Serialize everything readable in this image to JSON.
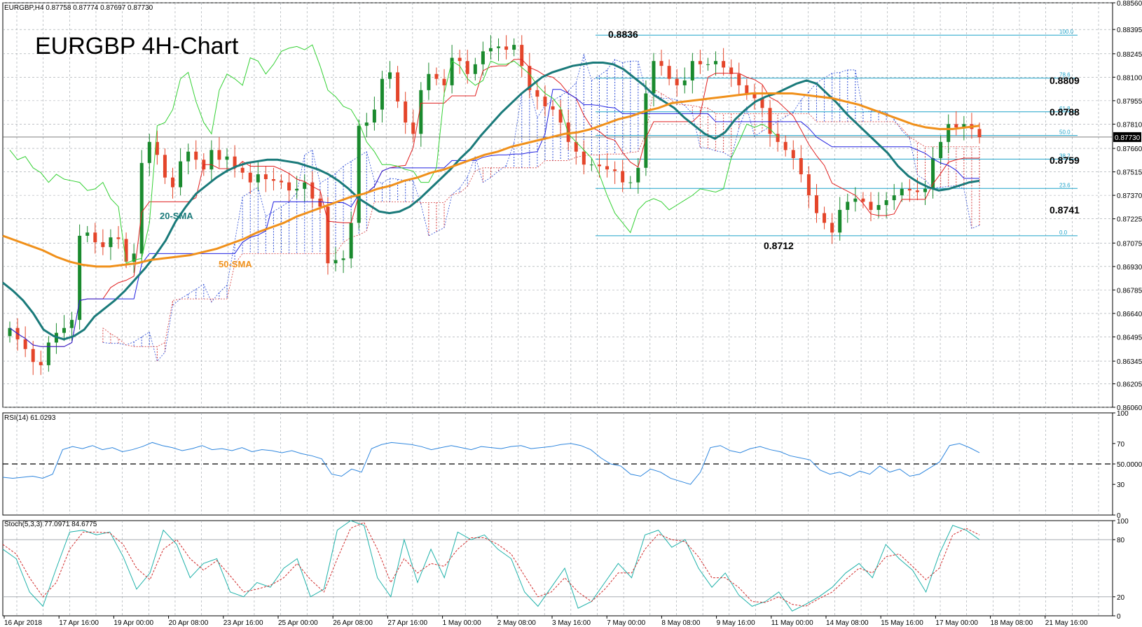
{
  "window": {
    "header_text": "EURGBP,H4  0.87758 0.87774 0.87697 0.87730",
    "chart_title": "EURGBP 4H-Chart"
  },
  "chart_data": [
    {
      "type": "line",
      "panel": "price",
      "title": "EURGBP 4H-Chart",
      "ylim": [
        0.8606,
        0.8856
      ],
      "y_ticks": [
        "0.88560",
        "0.88395",
        "0.88245",
        "0.88100",
        "0.87955",
        "0.87810",
        "0.87660",
        "0.87515",
        "0.87370",
        "0.87225",
        "0.87075",
        "0.86930",
        "0.86785",
        "0.86640",
        "0.86495",
        "0.86345",
        "0.86205",
        "0.86060"
      ],
      "x_tick_labels": [
        "16 Apr 2018",
        "17 Apr 16:00",
        "19 Apr 00:00",
        "20 Apr 08:00",
        "23 Apr 16:00",
        "25 Apr 00:00",
        "26 Apr 08:00",
        "27 Apr 16:00",
        "1 May 00:00",
        "2 May 08:00",
        "3 May 16:00",
        "7 May 00:00",
        "8 May 08:00",
        "9 May 16:00",
        "11 May 00:00",
        "14 May 08:00",
        "15 May 16:00",
        "17 May 00:00",
        "18 May 08:00",
        "21 May 16:00"
      ],
      "current_price": "0.87730",
      "close": [
        0.8655,
        0.8648,
        0.8642,
        0.8634,
        0.8632,
        0.8646,
        0.8652,
        0.8655,
        0.866,
        0.8712,
        0.8714,
        0.8708,
        0.8705,
        0.8711,
        0.871,
        0.8696,
        0.8701,
        0.8757,
        0.877,
        0.8762,
        0.8748,
        0.8742,
        0.8758,
        0.8764,
        0.8759,
        0.8753,
        0.8765,
        0.8759,
        0.8761,
        0.8754,
        0.8751,
        0.8745,
        0.875,
        0.8747,
        0.8746,
        0.8745,
        0.874,
        0.8741,
        0.8745,
        0.8735,
        0.873,
        0.8695,
        0.8697,
        0.8698,
        0.872,
        0.878,
        0.8782,
        0.879,
        0.8809,
        0.8813,
        0.8795,
        0.8782,
        0.8775,
        0.8802,
        0.8812,
        0.8809,
        0.8805,
        0.8822,
        0.882,
        0.8812,
        0.8818,
        0.8826,
        0.8828,
        0.8829,
        0.8827,
        0.883,
        0.8817,
        0.8802,
        0.8798,
        0.8792,
        0.879,
        0.8782,
        0.877,
        0.8764,
        0.8756,
        0.8756,
        0.8755,
        0.8753,
        0.8752,
        0.8745,
        0.8745,
        0.8754,
        0.88,
        0.882,
        0.8817,
        0.8809,
        0.8805,
        0.8808,
        0.882,
        0.8818,
        0.8818,
        0.882,
        0.8816,
        0.8812,
        0.8805,
        0.88,
        0.8797,
        0.8791,
        0.8775,
        0.877,
        0.8765,
        0.876,
        0.875,
        0.8737,
        0.8726,
        0.872,
        0.8714,
        0.8728,
        0.8733,
        0.8735,
        0.8733,
        0.8728,
        0.8731,
        0.8734,
        0.8737,
        0.8741,
        0.874,
        0.8739,
        0.8741,
        0.876,
        0.877,
        0.8781,
        0.8779,
        0.8781,
        0.8778,
        0.8773
      ],
      "series": [
        {
          "name": "20-SMA",
          "color": "#1a7a7a",
          "values": [
            0.8683,
            0.8678,
            0.8672,
            0.8664,
            0.8654,
            0.865,
            0.8648,
            0.865,
            0.8654,
            0.8662,
            0.8667,
            0.8672,
            0.8678,
            0.8685,
            0.8692,
            0.87,
            0.8709,
            0.8721,
            0.873,
            0.8738,
            0.8743,
            0.8748,
            0.8752,
            0.8755,
            0.8757,
            0.8758,
            0.8759,
            0.8759,
            0.8758,
            0.8757,
            0.8755,
            0.8753,
            0.875,
            0.8746,
            0.8741,
            0.8735,
            0.8731,
            0.8727,
            0.8726,
            0.8727,
            0.873,
            0.8735,
            0.8741,
            0.8747,
            0.8753,
            0.876,
            0.8766,
            0.8774,
            0.8781,
            0.8788,
            0.8794,
            0.88,
            0.8805,
            0.881,
            0.8813,
            0.8815,
            0.8817,
            0.8818,
            0.8819,
            0.8819,
            0.8818,
            0.8815,
            0.881,
            0.8805,
            0.8799,
            0.8795,
            0.8791,
            0.8785,
            0.878,
            0.8775,
            0.8772,
            0.8776,
            0.8784,
            0.879,
            0.8795,
            0.8798,
            0.88,
            0.8803,
            0.8806,
            0.8808,
            0.8806,
            0.88,
            0.8794,
            0.8787,
            0.8781,
            0.8775,
            0.8769,
            0.8763,
            0.8755,
            0.8749,
            0.8745,
            0.8742,
            0.874,
            0.8741,
            0.8743,
            0.8745,
            0.8746
          ]
        },
        {
          "name": "50-SMA",
          "color": "#f0901a",
          "values": [
            0.8712,
            0.8709,
            0.8706,
            0.8703,
            0.8699,
            0.8696,
            0.8694,
            0.8693,
            0.8693,
            0.8694,
            0.8695,
            0.8697,
            0.8698,
            0.8699,
            0.87,
            0.8702,
            0.8704,
            0.8707,
            0.871,
            0.8714,
            0.8717,
            0.872,
            0.8724,
            0.8727,
            0.873,
            0.8733,
            0.8736,
            0.8738,
            0.8741,
            0.8743,
            0.8746,
            0.8748,
            0.8751,
            0.8753,
            0.8756,
            0.8759,
            0.8762,
            0.8764,
            0.8767,
            0.8769,
            0.8771,
            0.8773,
            0.8775,
            0.8776,
            0.8778,
            0.8781,
            0.8784,
            0.8786,
            0.8789,
            0.8791,
            0.8794,
            0.8795,
            0.8796,
            0.8797,
            0.8798,
            0.8799,
            0.88,
            0.88,
            0.88,
            0.88,
            0.8799,
            0.8798,
            0.8797,
            0.8795,
            0.8793,
            0.879,
            0.8787,
            0.8784,
            0.8781,
            0.8779,
            0.8778,
            0.8778,
            0.8779,
            0.878
          ]
        }
      ],
      "annotations": {
        "high": "0.8836",
        "low": "0.8712",
        "levels": [
          "0.8809",
          "0.8788",
          "0.8759",
          "0.8741"
        ],
        "fib_tags": [
          "100.0",
          "78.6",
          "61.8",
          "50.0",
          "38.2",
          "23.6",
          "0.0"
        ],
        "sma20_label": "20-SMA",
        "sma50_label": "50-SMA"
      }
    },
    {
      "type": "line",
      "panel": "rsi",
      "title": "RSI(14) 61.0293",
      "ylim": [
        0,
        100
      ],
      "y_ticks": [
        "100",
        "70",
        "50.0000",
        "30",
        "0"
      ],
      "level": 50,
      "series": [
        {
          "name": "RSI(14)",
          "color": "#2e86de",
          "values": [
            37,
            36,
            37,
            38,
            36,
            40,
            64,
            67,
            65,
            68,
            64,
            66,
            62,
            64,
            67,
            71,
            68,
            66,
            63,
            65,
            68,
            64,
            65,
            63,
            66,
            62,
            64,
            63,
            61,
            63,
            60,
            58,
            55,
            40,
            38,
            45,
            42,
            65,
            69,
            71,
            70,
            69,
            67,
            64,
            66,
            68,
            66,
            64,
            67,
            66,
            65,
            67,
            68,
            65,
            66,
            67,
            69,
            70,
            68,
            64,
            56,
            50,
            48,
            40,
            38,
            45,
            42,
            36,
            33,
            30,
            42,
            66,
            68,
            63,
            61,
            65,
            67,
            64,
            62,
            58,
            56,
            54,
            44,
            40,
            42,
            38,
            43,
            40,
            48,
            42,
            45,
            38,
            40,
            46,
            52,
            68,
            70,
            66,
            61
          ]
        }
      ]
    },
    {
      "type": "line",
      "panel": "stochastic",
      "title": "Stoch(5,3,3) 77.0971 84.6775",
      "ylim": [
        0,
        100
      ],
      "y_ticks": [
        "100",
        "80",
        "20",
        "0"
      ],
      "series": [
        {
          "name": "%K",
          "color": "#20b2aa",
          "values": [
            70,
            60,
            25,
            10,
            50,
            88,
            90,
            85,
            88,
            62,
            28,
            45,
            90,
            75,
            40,
            55,
            60,
            25,
            20,
            35,
            30,
            50,
            60,
            20,
            28,
            90,
            100,
            95,
            40,
            20,
            80,
            35,
            70,
            40,
            88,
            80,
            85,
            70,
            60,
            25,
            10,
            30,
            50,
            8,
            15,
            35,
            55,
            40,
            85,
            90,
            72,
            80,
            50,
            30,
            45,
            22,
            10,
            15,
            25,
            5,
            12,
            20,
            30,
            45,
            55,
            40,
            75,
            60,
            48,
            25,
            65,
            95,
            90,
            80
          ]
        },
        {
          "name": "%D",
          "color": "#d12b2b",
          "values": [
            75,
            65,
            40,
            20,
            35,
            70,
            88,
            88,
            87,
            75,
            50,
            38,
            70,
            80,
            60,
            48,
            58,
            42,
            25,
            28,
            32,
            40,
            55,
            38,
            25,
            60,
            92,
            98,
            70,
            35,
            60,
            45,
            55,
            52,
            70,
            82,
            82,
            75,
            65,
            42,
            20,
            25,
            40,
            25,
            15,
            28,
            45,
            45,
            70,
            86,
            80,
            78,
            62,
            40,
            40,
            30,
            15,
            14,
            20,
            12,
            10,
            18,
            25,
            38,
            50,
            45,
            62,
            65,
            52,
            38,
            50,
            85,
            92,
            85
          ]
        }
      ]
    }
  ],
  "indicator_labels": {
    "rsi_header": "RSI(14) 61.0293",
    "stoch_header": "Stoch(5,3,3) 77.0971 84.6775"
  }
}
